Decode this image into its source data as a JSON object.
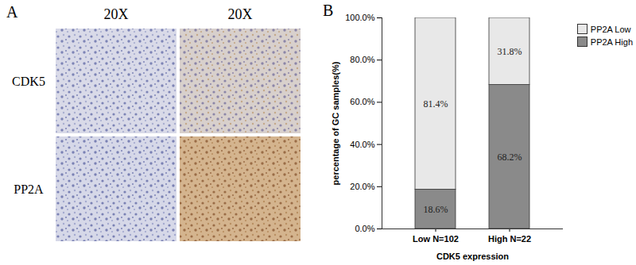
{
  "image_panel": {
    "label": "A",
    "column_headers": [
      "20X",
      "20X"
    ],
    "row_labels": [
      "CDK5",
      "PP2A"
    ]
  },
  "chart_data": {
    "type": "bar",
    "panel_label": "B",
    "categories": [
      "Low N=102",
      "High N=22"
    ],
    "series": [
      {
        "name": "PP2A Low",
        "color": "#e8e8e8",
        "values": [
          81.4,
          31.8
        ],
        "value_labels": [
          "81.4%",
          "31.8%"
        ]
      },
      {
        "name": "PP2A High",
        "color": "#8a8a8a",
        "values": [
          18.6,
          68.2
        ],
        "value_labels": [
          "18.6%",
          "68.2%"
        ]
      }
    ],
    "stacked": true,
    "data_labels": true,
    "x_label": "CDK5 expression",
    "y_label": "percentage of GC samples(%)",
    "ylim": [
      0,
      100
    ],
    "yticks": [
      {
        "value": 0,
        "label": "0.0%"
      },
      {
        "value": 20,
        "label": "20.0%"
      },
      {
        "value": 40,
        "label": "40.0%"
      },
      {
        "value": 60,
        "label": "60.0%"
      },
      {
        "value": 80,
        "label": "80.0%"
      },
      {
        "value": 100,
        "label": "100.0%"
      }
    ],
    "grid": false,
    "legend": "top-right"
  }
}
